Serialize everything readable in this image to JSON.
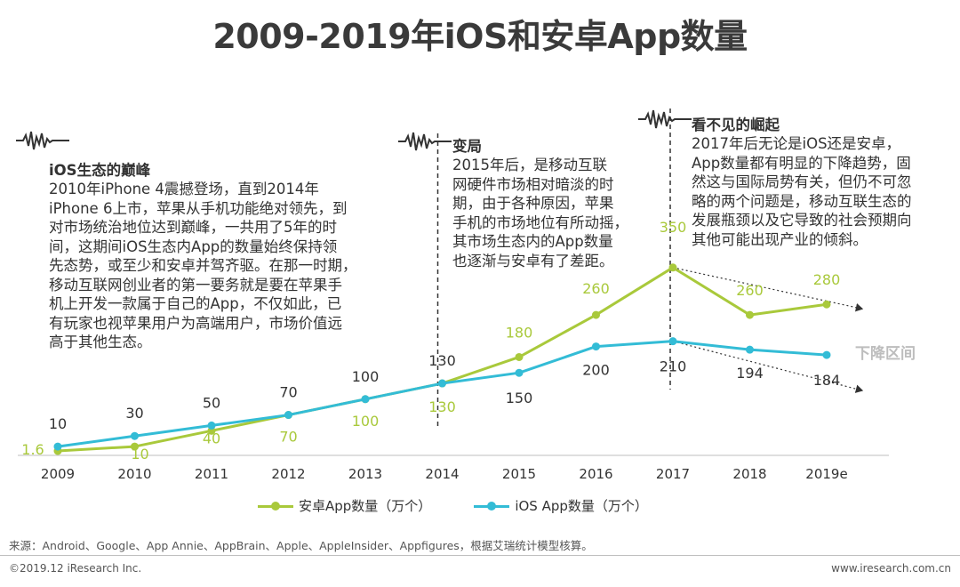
{
  "title": "2009-2019年iOS和安卓App数量",
  "annotations": [
    {
      "heading": "iOS生态的巅峰",
      "body": "2010年iPhone 4震撼登场，直到2014年\niPhone 6上市，苹果从手机功能绝对领先，到\n对市场统治地位达到巅峰，一共用了5年的时\n间，这期间iOS生态内App的数量始终保持领\n先态势，或至少和安卓并驾齐驱。在那一时期，\n移动互联网创业者的第一要务就是要在苹果手\n机上开发一款属于自己的App，不仅如此，已\n有玩家也视苹果用户为高端用户，市场价值远\n高于其他生态。"
    },
    {
      "heading": "变局",
      "body": "2015年后，是移动互联\n网硬件市场相对暗淡的时\n期，由于各种原因，苹果\n手机的市场地位有所动摇，\n其市场生态内的App数量\n也逐渐与安卓有了差距。"
    },
    {
      "heading": "看不见的崛起",
      "body": "2017年后无论是iOS还是安卓，\nApp数量都有明显的下降趋势，固\n然这与国际局势有关，但仍不可忽\n略的两个问题是，移动互联生态的\n发展瓶颈以及它导致的社会预期向\n其他可能出现产业的倾斜。"
    }
  ],
  "decline_label": "下降区间",
  "chart_data": {
    "type": "line",
    "title": "2009-2019年iOS和安卓App数量",
    "categories": [
      "2009",
      "2010",
      "2011",
      "2012",
      "2013",
      "2014",
      "2015",
      "2016",
      "2017",
      "2018",
      "2019e"
    ],
    "series": [
      {
        "name": "安卓App数量（万个）",
        "color": "#a9c93b",
        "values": [
          1.6,
          10,
          40,
          70,
          100,
          130,
          180,
          260,
          350,
          260,
          280
        ],
        "labels": [
          "1.6",
          "10",
          "40",
          "70",
          "100",
          "130",
          "180",
          "260",
          "350",
          "260",
          "280"
        ]
      },
      {
        "name": "iOS App数量（万个）",
        "color": "#33bcd6",
        "values": [
          10,
          30,
          50,
          70,
          100,
          130,
          150,
          200,
          210,
          194,
          184
        ],
        "labels": [
          "10",
          "30",
          "50",
          "70",
          "100",
          "130",
          "150",
          "200",
          "210",
          "194",
          "184"
        ]
      }
    ],
    "xlabel": "",
    "ylabel": "",
    "divider_years": [
      "2014",
      "2017"
    ],
    "grid": false
  },
  "source": "来源：Android、Google、App Annie、AppBrain、Apple、AppleInsider、Appfigures，根据艾瑞统计模型核算。",
  "copyright": "©2019.12 iResearch Inc.",
  "website": "www.iresearch.com.cn"
}
